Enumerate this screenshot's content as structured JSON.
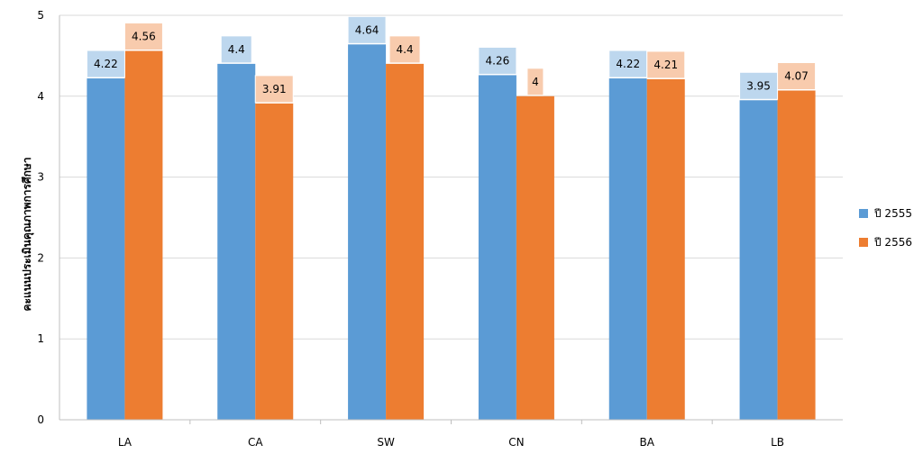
{
  "chart_data": {
    "type": "bar",
    "title": "",
    "xlabel": "",
    "ylabel": "คะแนนประเมินคุณภาพการศึกษา",
    "ylim": [
      0,
      5
    ],
    "yticks": [
      0,
      1,
      2,
      3,
      4,
      5
    ],
    "grid": true,
    "legend_position": "right",
    "categories": [
      "LA",
      "CA",
      "SW",
      "CN",
      "BA",
      "LB"
    ],
    "series": [
      {
        "name": "ปี 2555",
        "color": "#5b9bd5",
        "label_bg": "#bdd7ee",
        "values": [
          4.22,
          4.4,
          4.64,
          4.26,
          4.22,
          3.95
        ]
      },
      {
        "name": "ปี 2556",
        "color": "#ed7d31",
        "label_bg": "#f8cbad",
        "values": [
          4.56,
          3.91,
          4.4,
          4,
          4.21,
          4.07
        ]
      }
    ]
  }
}
